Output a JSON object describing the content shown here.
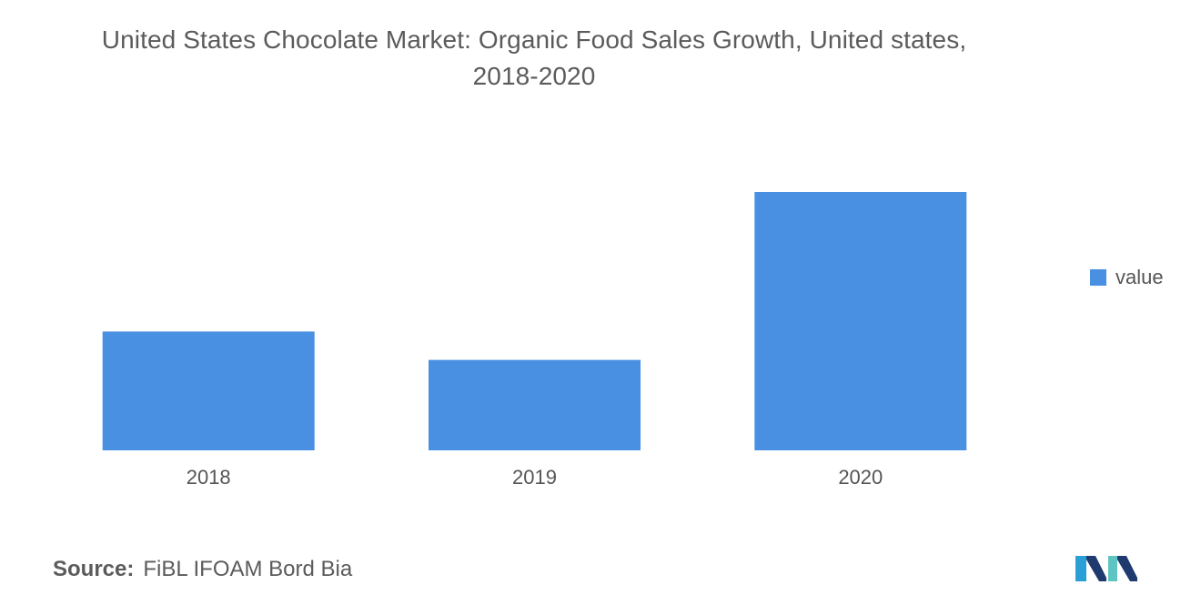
{
  "chart_data": {
    "type": "bar",
    "title": "United States Chocolate Market: Organic Food Sales Growth, United states,",
    "subtitle": "2018-2020",
    "categories": [
      "2018",
      "2019",
      "2020"
    ],
    "series": [
      {
        "name": "value",
        "values": [
          46,
          35,
          100
        ]
      }
    ],
    "ylim": [
      0,
      100
    ],
    "xlabel": "",
    "ylabel": "",
    "grid": false,
    "legend_position": "right",
    "colors": {
      "bar": "#4a90e2"
    }
  },
  "source": {
    "label": "Source:",
    "text": "FiBL IFOAM Bord Bia"
  },
  "logo": {
    "icon": "mordor-intelligence-logo-icon",
    "colors": [
      "#2a9fd6",
      "#1e3a6e",
      "#5fc5c3"
    ]
  }
}
